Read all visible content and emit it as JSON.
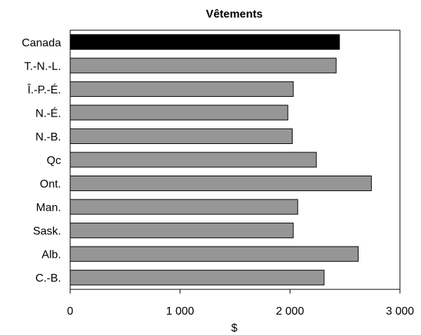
{
  "chart_data": {
    "type": "bar",
    "orientation": "horizontal",
    "title": "Vêtements",
    "xlabel": "$",
    "ylabel": "",
    "categories": [
      "Canada",
      "T.-N.-L.",
      "Î.-P.-É.",
      "N.-É.",
      "N.-B.",
      "Qc",
      "Ont.",
      "Man.",
      "Sask.",
      "Alb.",
      "C.-B."
    ],
    "values": [
      2450,
      2420,
      2030,
      1980,
      2020,
      2240,
      2740,
      2070,
      2030,
      2620,
      2310
    ],
    "highlight_index": 0,
    "xlim": [
      0,
      3000
    ],
    "xticks": [
      0,
      1000,
      2000,
      3000
    ],
    "xtick_labels": [
      "0",
      "1 000",
      "2 000",
      "3 000"
    ],
    "grid": false,
    "legend": "none",
    "colors": {
      "highlight": "#000000",
      "bar": "#969696",
      "bar_stroke": "#000000",
      "frame": "#000000"
    }
  }
}
